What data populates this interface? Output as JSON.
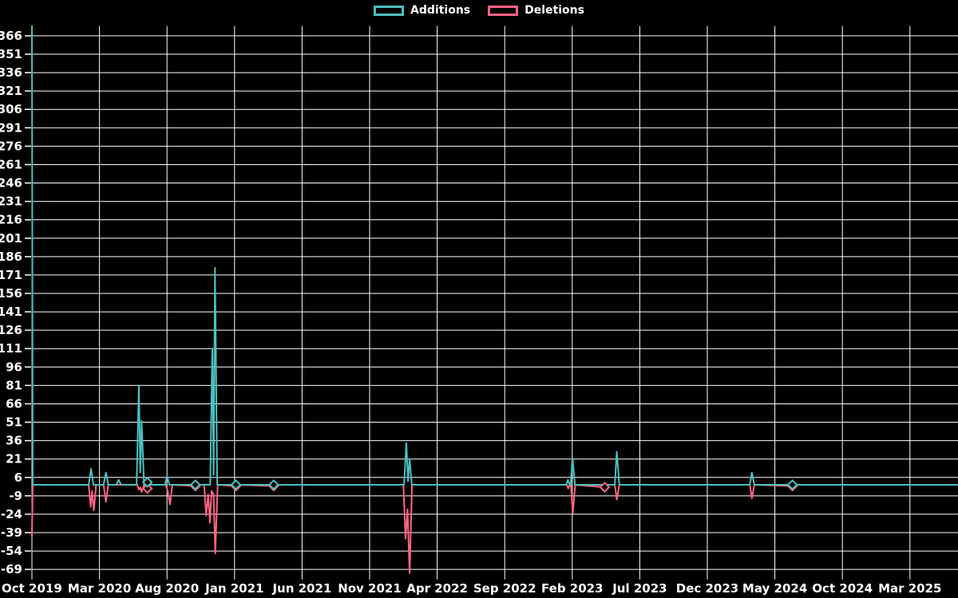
{
  "colors": {
    "background": "#000000",
    "grid": "#ffffff",
    "text": "#ffffff",
    "additions": "#4BC0C0",
    "deletions": "#FF6384"
  },
  "legend": {
    "items": [
      {
        "label": "Additions",
        "color": "#4BC0C0"
      },
      {
        "label": "Deletions",
        "color": "#FF6384"
      }
    ]
  },
  "chart_data": {
    "type": "line",
    "title": "",
    "xlabel": "",
    "ylabel": "",
    "x_axis": {
      "unit": "months since Oct 2019",
      "tick_step_months": 5,
      "tick_labels": [
        "Oct 2019",
        "Mar 2020",
        "Aug 2020",
        "Jan 2021",
        "Jun 2021",
        "Nov 2021",
        "Apr 2022",
        "Sep 2022",
        "Feb 2023",
        "Jul 2023",
        "Dec 2023",
        "May 2024",
        "Oct 2024",
        "Mar 2025"
      ],
      "range_months": [
        0,
        68.6
      ]
    },
    "y_axis": {
      "ticks": [
        366,
        351,
        336,
        321,
        306,
        291,
        276,
        261,
        246,
        231,
        216,
        201,
        186,
        171,
        156,
        141,
        126,
        111,
        96,
        81,
        66,
        51,
        36,
        21,
        6,
        -9,
        -24,
        -39,
        -54,
        -69
      ],
      "range": [
        -72,
        374
      ],
      "grid": true
    },
    "series": [
      {
        "name": "Additions",
        "color": "#4BC0C0",
        "points": [
          [
            0,
            374
          ],
          [
            0.06,
            0
          ],
          [
            4.2,
            0
          ],
          [
            4.38,
            13
          ],
          [
            4.55,
            0
          ],
          [
            5.3,
            0
          ],
          [
            5.48,
            10
          ],
          [
            5.65,
            0
          ],
          [
            6.25,
            0
          ],
          [
            6.42,
            4
          ],
          [
            6.6,
            0
          ],
          [
            7.75,
            0
          ],
          [
            7.92,
            81
          ],
          [
            8.02,
            10
          ],
          [
            8.12,
            52
          ],
          [
            8.3,
            0
          ],
          [
            8.55,
            2
          ],
          [
            8.7,
            0
          ],
          [
            9.85,
            0
          ],
          [
            10.0,
            7
          ],
          [
            10.18,
            0
          ],
          [
            12.1,
            0
          ],
          [
            13.2,
            0
          ],
          [
            13.35,
            111
          ],
          [
            13.45,
            8
          ],
          [
            13.55,
            177
          ],
          [
            13.72,
            0
          ],
          [
            15.1,
            0
          ],
          [
            17.9,
            0
          ],
          [
            27.55,
            0
          ],
          [
            27.72,
            34
          ],
          [
            27.84,
            3
          ],
          [
            27.96,
            21
          ],
          [
            28.12,
            0
          ],
          [
            39.55,
            0
          ],
          [
            39.68,
            4
          ],
          [
            39.8,
            0
          ],
          [
            39.88,
            0
          ],
          [
            40.02,
            22
          ],
          [
            40.2,
            0
          ],
          [
            43.15,
            0
          ],
          [
            43.3,
            27
          ],
          [
            43.48,
            0
          ],
          [
            53.15,
            0
          ],
          [
            53.3,
            10
          ],
          [
            53.48,
            0
          ],
          [
            56.3,
            0
          ],
          [
            68.5,
            0
          ]
        ]
      },
      {
        "name": "Deletions",
        "color": "#FF6384",
        "points": [
          [
            0,
            -42
          ],
          [
            0.06,
            0
          ],
          [
            4.2,
            0
          ],
          [
            4.35,
            -18
          ],
          [
            4.45,
            -5
          ],
          [
            4.58,
            -21
          ],
          [
            4.75,
            0
          ],
          [
            5.3,
            0
          ],
          [
            5.48,
            -14
          ],
          [
            5.65,
            0
          ],
          [
            7.8,
            0
          ],
          [
            7.92,
            -4
          ],
          [
            8.02,
            -2
          ],
          [
            8.12,
            -6
          ],
          [
            8.3,
            0
          ],
          [
            8.55,
            -3
          ],
          [
            8.7,
            0
          ],
          [
            9.9,
            0
          ],
          [
            10.05,
            -5
          ],
          [
            10.22,
            -16
          ],
          [
            10.4,
            0
          ],
          [
            12.1,
            -1
          ],
          [
            12.25,
            0
          ],
          [
            12.75,
            0
          ],
          [
            12.9,
            -25
          ],
          [
            13.05,
            -8
          ],
          [
            13.18,
            -31
          ],
          [
            13.3,
            -5
          ],
          [
            13.45,
            -8
          ],
          [
            13.57,
            -56
          ],
          [
            13.75,
            0
          ],
          [
            15.1,
            -1
          ],
          [
            15.25,
            0
          ],
          [
            17.9,
            -1
          ],
          [
            18.05,
            0
          ],
          [
            27.5,
            0
          ],
          [
            27.66,
            -44
          ],
          [
            27.8,
            -20
          ],
          [
            27.96,
            -72
          ],
          [
            28.14,
            0
          ],
          [
            39.6,
            0
          ],
          [
            39.7,
            -3
          ],
          [
            39.82,
            0
          ],
          [
            39.9,
            0
          ],
          [
            40.04,
            -23
          ],
          [
            40.22,
            0
          ],
          [
            42.4,
            -2
          ],
          [
            42.55,
            0
          ],
          [
            43.15,
            0
          ],
          [
            43.3,
            -12
          ],
          [
            43.48,
            0
          ],
          [
            53.15,
            0
          ],
          [
            53.3,
            -11
          ],
          [
            53.48,
            0
          ],
          [
            56.3,
            -1
          ],
          [
            56.45,
            0
          ],
          [
            68.5,
            0
          ]
        ]
      }
    ],
    "markers": [
      {
        "series": "Additions",
        "style": "diamond-outline",
        "points": [
          [
            8.55,
            2
          ],
          [
            12.1,
            0
          ],
          [
            15.1,
            0
          ],
          [
            17.9,
            0
          ],
          [
            56.3,
            0
          ]
        ]
      },
      {
        "series": "Deletions",
        "style": "diamond-outline",
        "points": [
          [
            8.55,
            -3
          ],
          [
            12.1,
            -1
          ],
          [
            15.1,
            -1
          ],
          [
            17.9,
            -1
          ],
          [
            42.4,
            -2
          ],
          [
            56.3,
            -1
          ]
        ]
      }
    ],
    "legend_position": "top-center"
  }
}
